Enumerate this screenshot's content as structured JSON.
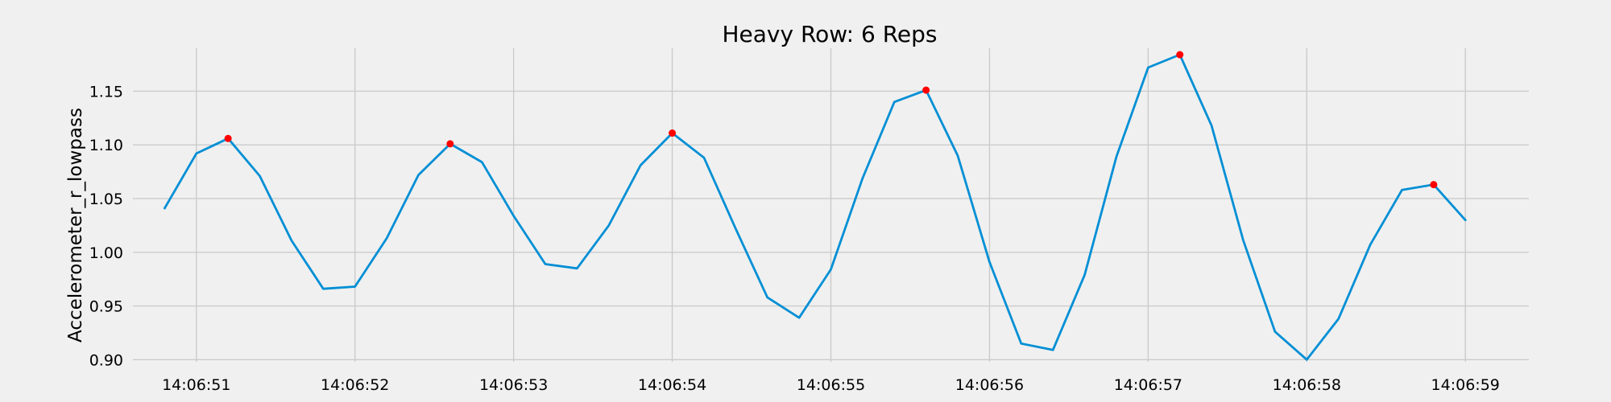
{
  "chart_data": {
    "type": "line",
    "title": "Heavy Row: 6 Reps",
    "xlabel": "",
    "ylabel": "Accelerometer_r_lowpass",
    "xlim": [
      "14:06:50.600",
      "14:06:59.400"
    ],
    "ylim": [
      0.898,
      1.19
    ],
    "x_ticks": [
      "14:06:51",
      "14:06:52",
      "14:06:53",
      "14:06:54",
      "14:06:55",
      "14:06:56",
      "14:06:57",
      "14:06:58",
      "14:06:59"
    ],
    "y_ticks": [
      "0.90",
      "0.95",
      "1.00",
      "1.05",
      "1.10",
      "1.15"
    ],
    "grid": true,
    "colors": {
      "background": "#f0f0f0",
      "line": "#008fd5",
      "peaks": "#ff0000",
      "grid": "#cbcbcb"
    },
    "series": [
      {
        "type": "line",
        "x": [
          "14:06:50.800",
          "14:06:51.000",
          "14:06:51.200",
          "14:06:51.400",
          "14:06:51.600",
          "14:06:51.800",
          "14:06:52.000",
          "14:06:52.200",
          "14:06:52.400",
          "14:06:52.600",
          "14:06:52.800",
          "14:06:53.000",
          "14:06:53.200",
          "14:06:53.400",
          "14:06:53.600",
          "14:06:53.800",
          "14:06:54.000",
          "14:06:54.200",
          "14:06:54.400",
          "14:06:54.600",
          "14:06:54.800",
          "14:06:55.000",
          "14:06:55.200",
          "14:06:55.400",
          "14:06:55.600",
          "14:06:55.800",
          "14:06:56.000",
          "14:06:56.200",
          "14:06:56.400",
          "14:06:56.600",
          "14:06:56.800",
          "14:06:57.000",
          "14:06:57.200",
          "14:06:57.400",
          "14:06:57.600",
          "14:06:57.800",
          "14:06:58.000",
          "14:06:58.200",
          "14:06:58.400",
          "14:06:58.600",
          "14:06:58.800",
          "14:06:59.000"
        ],
        "y": [
          1.041,
          1.092,
          1.106,
          1.071,
          1.011,
          0.966,
          0.968,
          1.013,
          1.072,
          1.101,
          1.084,
          1.034,
          0.989,
          0.985,
          1.025,
          1.081,
          1.111,
          1.088,
          1.022,
          0.958,
          0.939,
          0.984,
          1.069,
          1.14,
          1.151,
          1.09,
          0.991,
          0.915,
          0.909,
          0.979,
          1.089,
          1.172,
          1.184,
          1.118,
          1.011,
          0.926,
          0.9,
          0.938,
          1.007,
          1.058,
          1.063,
          1.03
        ]
      },
      {
        "type": "scatter",
        "x": [
          "14:06:51.200",
          "14:06:52.600",
          "14:06:54.000",
          "14:06:55.600",
          "14:06:57.200",
          "14:06:58.800"
        ],
        "y": [
          1.106,
          1.101,
          1.111,
          1.151,
          1.184,
          1.063
        ]
      }
    ]
  }
}
